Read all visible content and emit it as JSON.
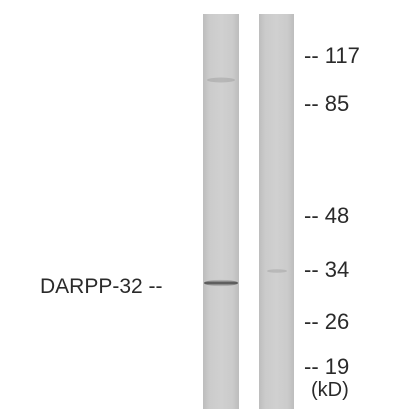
{
  "figure": {
    "band_label": "DARPP-32 --",
    "unit_label": "(kD)",
    "marker_labels": [
      "-- 117",
      "-- 85",
      "-- 48",
      "-- 34",
      "-- 26",
      "-- 19"
    ]
  },
  "colors": {
    "background": "#ffffff",
    "lane_fill": "#c7c7c7",
    "lane_edge": "#b8b8b8",
    "band": "#4a4a4a",
    "text": "#2a2a2a"
  }
}
